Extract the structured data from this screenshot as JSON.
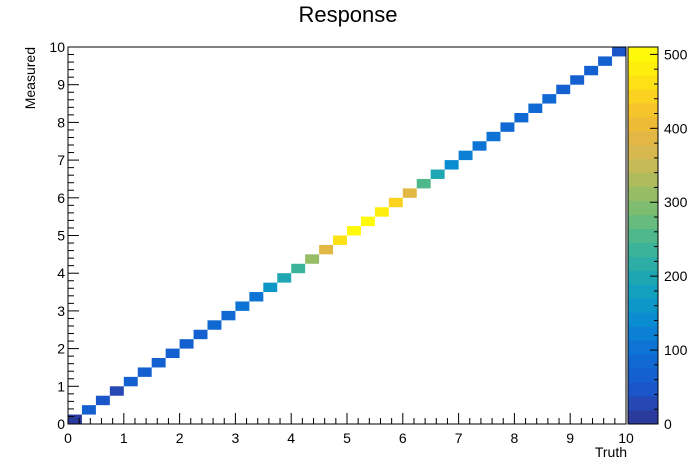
{
  "chart_data": {
    "type": "heatmap",
    "title": "Response",
    "xlabel": "Truth",
    "ylabel": "Measured",
    "xlim": [
      0,
      10
    ],
    "ylim": [
      0,
      10
    ],
    "x_ticks": [
      "0",
      "1",
      "2",
      "3",
      "4",
      "5",
      "6",
      "7",
      "8",
      "9",
      "10"
    ],
    "y_ticks": [
      "0",
      "1",
      "2",
      "3",
      "4",
      "5",
      "6",
      "7",
      "8",
      "9",
      "10"
    ],
    "bins_x": 40,
    "bins_y": 40,
    "bin_width": 0.25,
    "zlim": [
      0,
      510
    ],
    "z_ticks": [
      "0",
      "100",
      "200",
      "300",
      "400",
      "500"
    ],
    "palette": [
      "#2b3a9d",
      "#2548b4",
      "#1a55c9",
      "#1560d0",
      "#1069d3",
      "#0d74d5",
      "#0b80d4",
      "#0a8cd0",
      "#0d97c9",
      "#14a0bf",
      "#1ea7b3",
      "#2caea6",
      "#3bb398",
      "#4fb88a",
      "#66bb7d",
      "#7ebd70",
      "#96bd66",
      "#aebc5d",
      "#c4ba57",
      "#d6b84f",
      "#e3b744",
      "#eebb37",
      "#f6c42b",
      "#fbd21f",
      "#fde115",
      "#feee0c",
      "#fff90a"
    ],
    "cells": [
      {
        "x": 0.125,
        "y": 0.125,
        "z": 10
      },
      {
        "x": 0.375,
        "y": 0.375,
        "z": 60
      },
      {
        "x": 0.625,
        "y": 0.625,
        "z": 40
      },
      {
        "x": 0.875,
        "y": 0.875,
        "z": 35
      },
      {
        "x": 1.125,
        "y": 1.125,
        "z": 68
      },
      {
        "x": 1.375,
        "y": 1.375,
        "z": 68
      },
      {
        "x": 1.625,
        "y": 1.625,
        "z": 70
      },
      {
        "x": 1.875,
        "y": 1.875,
        "z": 70
      },
      {
        "x": 2.125,
        "y": 2.125,
        "z": 70
      },
      {
        "x": 2.375,
        "y": 2.375,
        "z": 72
      },
      {
        "x": 2.625,
        "y": 2.625,
        "z": 85
      },
      {
        "x": 2.875,
        "y": 2.875,
        "z": 88
      },
      {
        "x": 3.125,
        "y": 3.125,
        "z": 95
      },
      {
        "x": 3.375,
        "y": 3.375,
        "z": 110
      },
      {
        "x": 3.625,
        "y": 3.625,
        "z": 155
      },
      {
        "x": 3.875,
        "y": 3.875,
        "z": 205
      },
      {
        "x": 4.125,
        "y": 4.125,
        "z": 245
      },
      {
        "x": 4.375,
        "y": 4.375,
        "z": 305
      },
      {
        "x": 4.625,
        "y": 4.625,
        "z": 395
      },
      {
        "x": 4.875,
        "y": 4.875,
        "z": 470
      },
      {
        "x": 5.125,
        "y": 5.125,
        "z": 505
      },
      {
        "x": 5.375,
        "y": 5.375,
        "z": 495
      },
      {
        "x": 5.625,
        "y": 5.625,
        "z": 475
      },
      {
        "x": 5.875,
        "y": 5.875,
        "z": 435
      },
      {
        "x": 6.125,
        "y": 6.125,
        "z": 390
      },
      {
        "x": 6.375,
        "y": 6.375,
        "z": 260
      },
      {
        "x": 6.625,
        "y": 6.625,
        "z": 190
      },
      {
        "x": 6.875,
        "y": 6.875,
        "z": 140
      },
      {
        "x": 7.125,
        "y": 7.125,
        "z": 115
      },
      {
        "x": 7.375,
        "y": 7.375,
        "z": 105
      },
      {
        "x": 7.625,
        "y": 7.625,
        "z": 95
      },
      {
        "x": 7.875,
        "y": 7.875,
        "z": 90
      },
      {
        "x": 8.125,
        "y": 8.125,
        "z": 85
      },
      {
        "x": 8.375,
        "y": 8.375,
        "z": 80
      },
      {
        "x": 8.625,
        "y": 8.625,
        "z": 78
      },
      {
        "x": 8.875,
        "y": 8.875,
        "z": 75
      },
      {
        "x": 9.125,
        "y": 9.125,
        "z": 72
      },
      {
        "x": 9.375,
        "y": 9.375,
        "z": 70
      },
      {
        "x": 9.625,
        "y": 9.625,
        "z": 68
      },
      {
        "x": 9.875,
        "y": 9.875,
        "z": 40
      }
    ]
  }
}
